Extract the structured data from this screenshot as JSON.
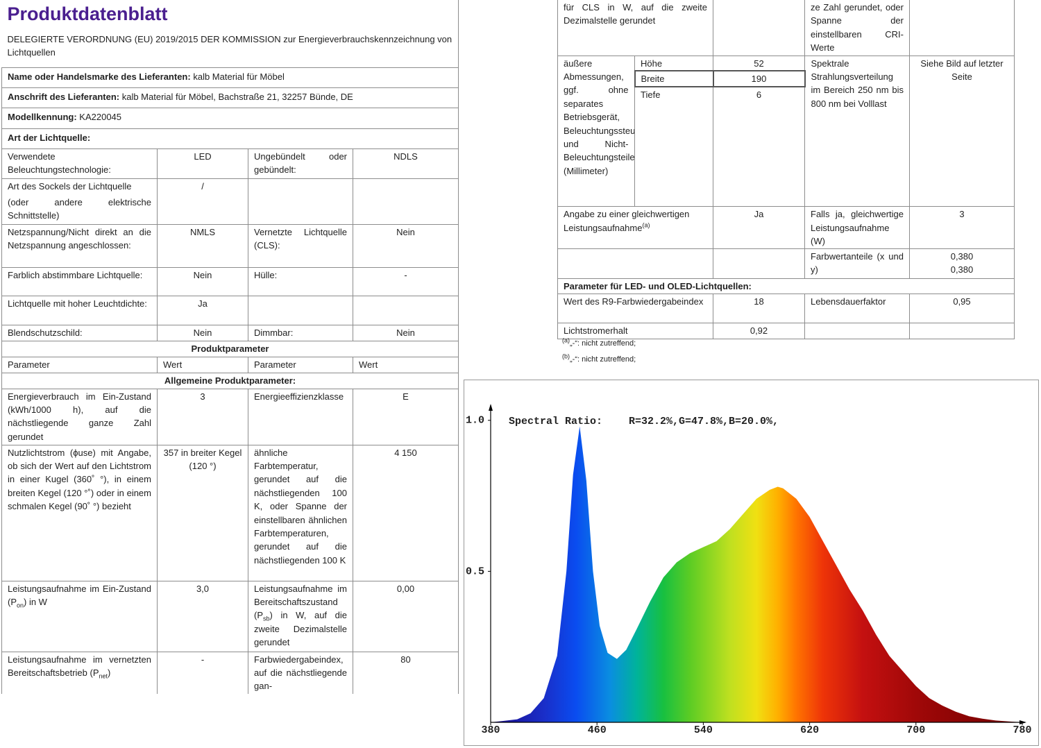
{
  "header": {
    "title": "Produktdatenblatt",
    "regulation": "DELEGIERTE VERORDNUNG (EU) 2019/2015 DER KOMMISSION zur Energieverbrauchskennzeichnung von Lichtquellen"
  },
  "left_table": {
    "rows": [
      [
        "Name oder Handelsmarke des Lieferanten:",
        "kalb Material für Möbel"
      ],
      [
        "Anschrift des Lieferanten:",
        "kalb Material für Möbel, Bachstraße 21, 32257 Bünde, DE"
      ],
      [
        "Modellkennung:",
        "KA220045"
      ],
      [
        "Art der Lichtquelle:"
      ],
      [
        "Verwendete Beleuchtungstechnologie:",
        "LED",
        "Ungebündelt oder gebündelt:",
        "NDLS"
      ],
      [
        [
          "Art des Sockels der Lichtquelle",
          "(oder andere elektrische Schnittstelle)"
        ],
        "/"
      ],
      [
        "Netzspannung/Nicht direkt an die Netzspannung angeschlossen:",
        "NMLS",
        "Vernetzte Lichtquelle (CLS):",
        "Nein"
      ],
      [
        "Farblich abstimmbare Lichtquelle:",
        "Nein",
        "Hülle:",
        "-"
      ],
      [
        "Lichtquelle mit hoher Leuchtdichte:",
        "Ja"
      ],
      [
        "Blendschutzschild:",
        "Nein",
        "Dimmbar:",
        "Nein"
      ],
      [
        "Produktparameter"
      ],
      [
        "Parameter",
        "Wert",
        "Parameter",
        "Wert"
      ],
      [
        "Allgemeine Produktparameter:"
      ],
      [
        "Energieverbrauch im Ein-Zustand (kWh/1000 h), auf die nächstliegende ganze Zahl gerundet",
        "3",
        "Energieeffizienzklasse",
        "E"
      ],
      [
        "Nutzlichtstrom (ϕuse) mit Angabe, ob sich der Wert auf den Lichtstrom in einer Kugel (360˚ °), in einem breiten Kegel (120 °˚) oder in einem schmalen Kegel (90˚ °) bezieht",
        "357 in breiter Kegel (120 °)",
        "ähnliche Farbtemperatur, gerundet auf die nächstliegenden 100 K, oder Spanne der einstellbaren ähnlichen Farbtemperaturen, gerundet auf die nächstliegenden 100 K",
        "4 150"
      ],
      [
        [
          "Leistungsaufnahme im Ein-Zustand (P",
          "on",
          ") in W"
        ],
        "3,0",
        [
          "Leistungsaufnahme im Bereitschaftszustand (P",
          "sb",
          ") in W, auf die zweite Dezimalstelle gerundet"
        ],
        "0,00"
      ],
      [
        [
          "Leistungsaufnahme im vernetzten Bereitschaftsbetrieb (P",
          "net",
          ")"
        ],
        "-",
        "Farbwiedergabeindex, auf die nächstliegende gan-",
        "80"
      ]
    ]
  },
  "right_table": {
    "rows": [
      [
        "für CLS in W, auf die zweite Dezimalstelle gerundet",
        "ze Zahl gerundet, oder Spanne der einstellbaren CRI-Werte"
      ],
      [
        "äußere Abmessungen, ggf. ohne separates Betriebsgerät, Beleuchtungssteuerungsteile und Nicht-Beleuchtungsteile (Millimeter)",
        "Höhe",
        "52",
        "Spektrale Strahlungsverteilung im Bereich 250 nm bis 800 nm bei Volllast",
        "Siehe Bild auf letzter Seite"
      ],
      [
        "Breite",
        "190"
      ],
      [
        "Tiefe",
        "6"
      ],
      [
        [
          "Angabe zu einer gleichwertigen Leistungsaufnahme",
          "(a)"
        ],
        "Ja",
        "Falls ja, gleichwertige Leistungsaufnahme (W)",
        "3"
      ],
      [
        "Farbwertanteile (x und y)",
        "0,380",
        "0,380"
      ],
      [
        "Parameter für LED- und OLED-Lichtquellen:"
      ],
      [
        "Wert des R9-Farbwiedergabeindex",
        "18",
        "Lebensdauerfaktor",
        "0,95"
      ],
      [
        "Lichtstromerhalt",
        "0,92"
      ]
    ]
  },
  "footnotes": [
    [
      "(a)",
      "„-“: nicht zutreffend;"
    ],
    [
      "(b)",
      "„-“: nicht zutreffend;"
    ]
  ],
  "chart_data": {
    "type": "area",
    "title": "Spectral Ratio:",
    "subtitle": "R=32.2%,G=47.8%,B=20.0%,",
    "x": [
      380,
      390,
      400,
      410,
      420,
      430,
      437,
      442,
      447,
      452,
      457,
      462,
      468,
      475,
      482,
      490,
      500,
      510,
      520,
      530,
      540,
      550,
      560,
      570,
      580,
      590,
      596,
      600,
      610,
      620,
      630,
      640,
      650,
      660,
      670,
      680,
      690,
      700,
      710,
      720,
      730,
      740,
      750,
      760,
      770,
      780
    ],
    "values": [
      0,
      0.005,
      0.01,
      0.03,
      0.08,
      0.22,
      0.5,
      0.82,
      0.98,
      0.8,
      0.5,
      0.32,
      0.23,
      0.21,
      0.24,
      0.31,
      0.4,
      0.48,
      0.53,
      0.56,
      0.58,
      0.6,
      0.64,
      0.69,
      0.74,
      0.77,
      0.78,
      0.775,
      0.74,
      0.68,
      0.6,
      0.52,
      0.44,
      0.37,
      0.29,
      0.22,
      0.17,
      0.12,
      0.08,
      0.055,
      0.035,
      0.02,
      0.012,
      0.006,
      0.003,
      0
    ],
    "xlim": [
      380,
      780
    ],
    "ylim": [
      0,
      1.05
    ],
    "xticks": [
      380,
      460,
      540,
      620,
      700,
      780
    ],
    "yticks": [
      0.5,
      {
        "value": 1,
        "label": "1.0"
      }
    ],
    "grid": false
  }
}
